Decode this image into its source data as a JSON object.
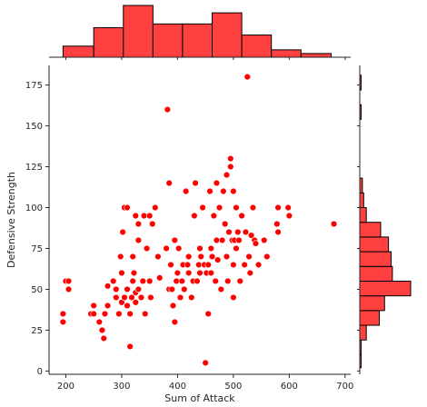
{
  "colors": {
    "points": "#ff0000",
    "point_edge": "#ffffff",
    "hist_fill": "#ff4040",
    "hist_edge": "#000000",
    "axis": "#262626"
  },
  "chart_data": {
    "type": "scatter",
    "xlabel": "Sum of Attack",
    "ylabel": "Defensive Strength",
    "xlim": [
      170,
      710
    ],
    "ylim": [
      -2,
      187
    ],
    "x_ticks": [
      200,
      300,
      400,
      500,
      600,
      700
    ],
    "y_ticks": [
      0,
      25,
      50,
      75,
      100,
      125,
      150,
      175
    ],
    "legend": "none",
    "grid": false,
    "points": [
      [
        195,
        35
      ],
      [
        195,
        30
      ],
      [
        200,
        55
      ],
      [
        205,
        50
      ],
      [
        205,
        55
      ],
      [
        245,
        35
      ],
      [
        250,
        40
      ],
      [
        250,
        35
      ],
      [
        260,
        30
      ],
      [
        265,
        25
      ],
      [
        268,
        20
      ],
      [
        270,
        35
      ],
      [
        275,
        52
      ],
      [
        275,
        40
      ],
      [
        285,
        55
      ],
      [
        290,
        45
      ],
      [
        290,
        50
      ],
      [
        295,
        35
      ],
      [
        298,
        70
      ],
      [
        300,
        60
      ],
      [
        300,
        42
      ],
      [
        302,
        85
      ],
      [
        305,
        100
      ],
      [
        305,
        45
      ],
      [
        310,
        100
      ],
      [
        310,
        40
      ],
      [
        310,
        50
      ],
      [
        315,
        15
      ],
      [
        315,
        35
      ],
      [
        318,
        45
      ],
      [
        320,
        70
      ],
      [
        320,
        55
      ],
      [
        322,
        60
      ],
      [
        325,
        95
      ],
      [
        325,
        48
      ],
      [
        325,
        42
      ],
      [
        330,
        90
      ],
      [
        330,
        80
      ],
      [
        330,
        50
      ],
      [
        335,
        45
      ],
      [
        338,
        55
      ],
      [
        340,
        95
      ],
      [
        342,
        35
      ],
      [
        345,
        75
      ],
      [
        350,
        95
      ],
      [
        350,
        55
      ],
      [
        352,
        45
      ],
      [
        355,
        90
      ],
      [
        360,
        100
      ],
      [
        365,
        70
      ],
      [
        368,
        57
      ],
      [
        380,
        75
      ],
      [
        382,
        160
      ],
      [
        385,
        50
      ],
      [
        385,
        115
      ],
      [
        388,
        65
      ],
      [
        390,
        50
      ],
      [
        392,
        40
      ],
      [
        395,
        80
      ],
      [
        395,
        30
      ],
      [
        398,
        55
      ],
      [
        400,
        60
      ],
      [
        402,
        75
      ],
      [
        405,
        45
      ],
      [
        408,
        55
      ],
      [
        410,
        65
      ],
      [
        412,
        50
      ],
      [
        415,
        110
      ],
      [
        418,
        65
      ],
      [
        420,
        70
      ],
      [
        420,
        60
      ],
      [
        425,
        45
      ],
      [
        428,
        55
      ],
      [
        430,
        95
      ],
      [
        432,
        115
      ],
      [
        435,
        55
      ],
      [
        438,
        65
      ],
      [
        440,
        60
      ],
      [
        440,
        75
      ],
      [
        442,
        70
      ],
      [
        445,
        100
      ],
      [
        448,
        65
      ],
      [
        450,
        5
      ],
      [
        452,
        60
      ],
      [
        455,
        65
      ],
      [
        455,
        35
      ],
      [
        458,
        110
      ],
      [
        460,
        75
      ],
      [
        460,
        60
      ],
      [
        462,
        70
      ],
      [
        465,
        95
      ],
      [
        468,
        55
      ],
      [
        470,
        80
      ],
      [
        470,
        115
      ],
      [
        472,
        68
      ],
      [
        475,
        100
      ],
      [
        478,
        50
      ],
      [
        480,
        80
      ],
      [
        482,
        110
      ],
      [
        485,
        90
      ],
      [
        488,
        70
      ],
      [
        488,
        120
      ],
      [
        490,
        55
      ],
      [
        492,
        85
      ],
      [
        495,
        130
      ],
      [
        495,
        125
      ],
      [
        498,
        80
      ],
      [
        500,
        65
      ],
      [
        500,
        45
      ],
      [
        500,
        110
      ],
      [
        502,
        80
      ],
      [
        505,
        75
      ],
      [
        505,
        100
      ],
      [
        508,
        85
      ],
      [
        510,
        80
      ],
      [
        512,
        55
      ],
      [
        515,
        95
      ],
      [
        520,
        65
      ],
      [
        522,
        85
      ],
      [
        525,
        180
      ],
      [
        528,
        70
      ],
      [
        530,
        60
      ],
      [
        532,
        83
      ],
      [
        535,
        100
      ],
      [
        538,
        80
      ],
      [
        540,
        78
      ],
      [
        545,
        65
      ],
      [
        555,
        80
      ],
      [
        560,
        70
      ],
      [
        578,
        90
      ],
      [
        580,
        100
      ],
      [
        580,
        85
      ],
      [
        598,
        100
      ],
      [
        600,
        95
      ],
      [
        680,
        90
      ]
    ],
    "top_histogram": {
      "bin_edges": [
        195,
        250,
        303,
        356,
        409,
        462,
        515,
        568,
        621,
        675
      ],
      "counts": [
        3,
        8,
        14,
        9,
        9,
        12,
        6,
        2,
        1
      ]
    },
    "right_histogram": {
      "bin_edges": [
        2,
        10,
        19,
        28,
        37,
        46,
        55,
        64,
        73,
        82,
        91,
        100,
        109,
        118,
        127,
        136,
        145,
        154,
        163,
        172,
        181
      ],
      "counts": [
        1,
        1,
        5,
        15,
        19,
        39,
        25,
        24,
        22,
        16,
        5,
        3,
        2,
        0,
        0,
        0,
        0,
        1,
        0,
        1
      ]
    }
  }
}
